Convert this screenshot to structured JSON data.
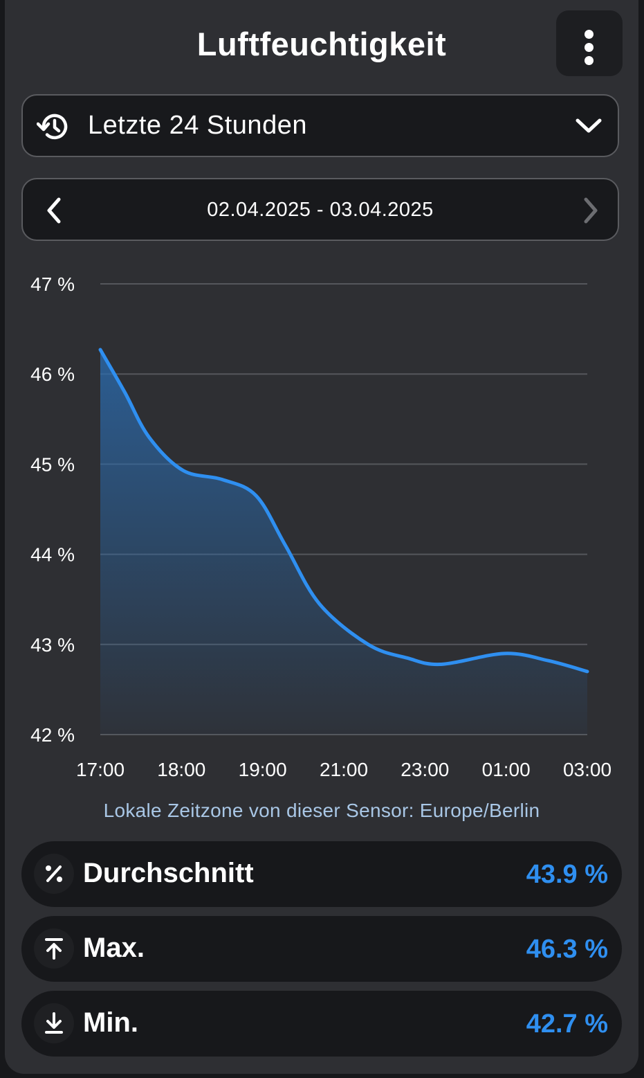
{
  "header": {
    "title": "Luftfeuchtigkeit",
    "menu_icon": "more-vertical-icon"
  },
  "range_select": {
    "icon": "history-icon",
    "label": "Letzte 24 Stunden",
    "chevron_icon": "chevron-down-icon"
  },
  "date_nav": {
    "label": "02.04.2025 - 03.04.2025",
    "prev_icon": "chevron-left-icon",
    "next_icon": "chevron-right-icon"
  },
  "chart_data": {
    "type": "area",
    "title": "",
    "xlabel": "",
    "ylabel": "",
    "ylim": [
      42,
      47
    ],
    "y_ticks": [
      "47 %",
      "46 %",
      "45 %",
      "44 %",
      "43 %",
      "42 %"
    ],
    "y_tick_values": [
      47,
      46,
      45,
      44,
      43,
      42
    ],
    "x_tick_labels": [
      "17:00",
      "18:00",
      "19:00",
      "21:00",
      "23:00",
      "01:00",
      "03:00"
    ],
    "grid": true,
    "line_color": "#2f8ff0",
    "series": [
      {
        "points": [
          {
            "t": 0.0,
            "y": 46.27
          },
          {
            "t": 0.05,
            "y": 45.8
          },
          {
            "t": 0.1,
            "y": 45.3
          },
          {
            "t": 0.17,
            "y": 44.93
          },
          {
            "t": 0.25,
            "y": 44.83
          },
          {
            "t": 0.32,
            "y": 44.65
          },
          {
            "t": 0.38,
            "y": 44.1
          },
          {
            "t": 0.45,
            "y": 43.45
          },
          {
            "t": 0.55,
            "y": 43.0
          },
          {
            "t": 0.63,
            "y": 42.85
          },
          {
            "t": 0.7,
            "y": 42.78
          },
          {
            "t": 0.83,
            "y": 42.9
          },
          {
            "t": 0.92,
            "y": 42.82
          },
          {
            "t": 1.0,
            "y": 42.7
          }
        ]
      }
    ]
  },
  "timezone_note": "Lokale Zeitzone von dieser Sensor: Europe/Berlin",
  "stats": [
    {
      "icon": "percent-icon",
      "label": "Durchschnitt",
      "value": "43.9 %"
    },
    {
      "icon": "arrow-up-to-line-icon",
      "label": "Max.",
      "value": "46.3 %"
    },
    {
      "icon": "arrow-down-to-line-icon",
      "label": "Min.",
      "value": "42.7 %"
    }
  ]
}
